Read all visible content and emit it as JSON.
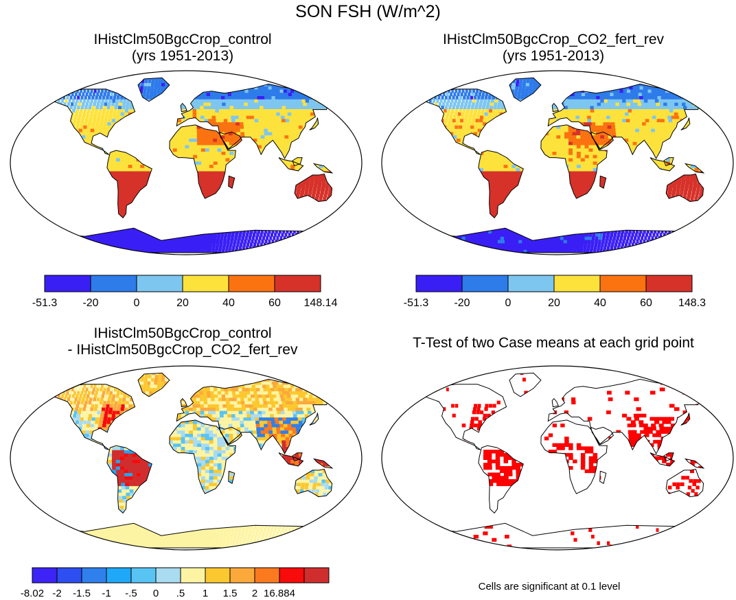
{
  "title": "SON FSH (W/m^2)",
  "colors": {
    "levels7": [
      "#3a1ff5",
      "#2e7bea",
      "#7dc6f0",
      "#fde23c",
      "#fb7311",
      "#d6322a"
    ],
    "diff12": [
      "#3d23f5",
      "#2d4ef0",
      "#2f80ec",
      "#1fa8f7",
      "#58c4f4",
      "#a9dbf1",
      "#fdf4a3",
      "#fcc82f",
      "#fca93c",
      "#fb7a20",
      "#f70b0b",
      "#d02e2e"
    ],
    "land_outline": "#000000",
    "significant": "#ff0000"
  },
  "panels": [
    {
      "id": "control",
      "title_line1": "IHistClm50BgcCrop_control",
      "title_line2": "(yrs 1951-2013)",
      "colorbar_labels": [
        "-51.3",
        "-20",
        "0",
        "20",
        "40",
        "60",
        "148.14"
      ]
    },
    {
      "id": "co2_fert_rev",
      "title_line1": "IHistClm50BgcCrop_CO2_fert_rev",
      "title_line2": "(yrs 1951-2013)",
      "colorbar_labels": [
        "-51.3",
        "-20",
        "0",
        "20",
        "40",
        "60",
        "148.3"
      ]
    },
    {
      "id": "difference",
      "title_line1": "IHistClm50BgcCrop_control",
      "title_line2": "- IHistClm50BgcCrop_CO2_fert_rev",
      "colorbar_labels": [
        "-8.02",
        "-2",
        "-1.5",
        "-1",
        "-.5",
        "0",
        ".5",
        "1",
        "1.5",
        "2",
        "16.884"
      ]
    },
    {
      "id": "ttest",
      "title_line1": "T-Test of two Case means at each grid point",
      "note": "Cells are significant at 0.1 level"
    }
  ]
}
